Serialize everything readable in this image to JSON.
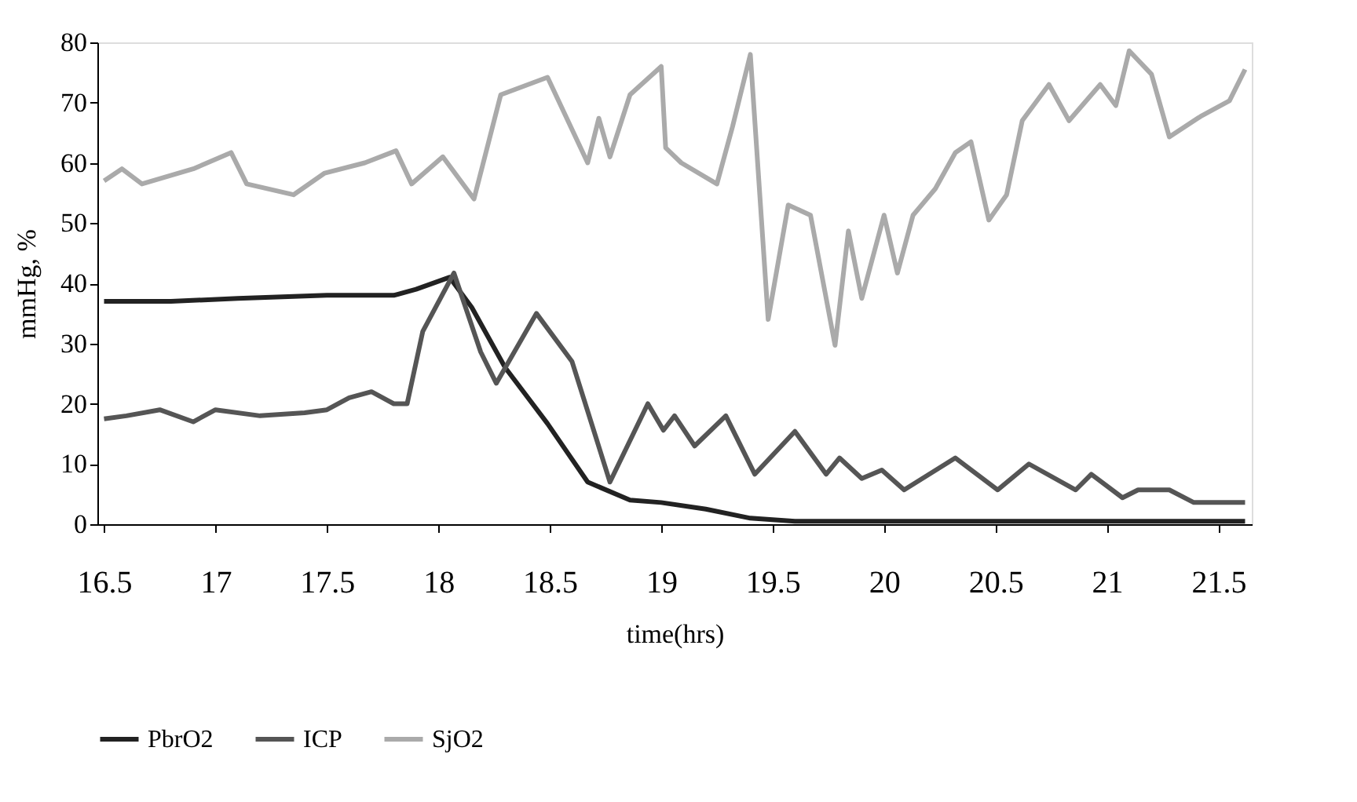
{
  "chart_data": {
    "type": "line",
    "xlabel": "time(hrs)",
    "ylabel": "mmHg, %",
    "xlim": [
      16.47,
      21.65
    ],
    "xticks": [
      16.5,
      17,
      17.5,
      18,
      18.5,
      19,
      19.5,
      20,
      20.5,
      21,
      21.5
    ],
    "ylim": [
      0,
      80
    ],
    "yticks": [
      0,
      10,
      20,
      30,
      40,
      50,
      60,
      70,
      80
    ],
    "grid": false,
    "legend": "bottom",
    "marker": "none",
    "line_style": "solid",
    "series": [
      {
        "name": "PbrO2",
        "color": "#222222",
        "x": [
          16.5,
          16.8,
          17.1,
          17.5,
          17.8,
          17.9,
          18.05,
          18.15,
          18.3,
          18.49,
          18.67,
          18.86,
          19.0,
          19.2,
          19.4,
          19.6,
          20.0,
          20.5,
          21.0,
          21.5,
          21.62
        ],
        "values": [
          37,
          37,
          37.5,
          38,
          38,
          39,
          41,
          36,
          26,
          16.7,
          7,
          4,
          3.6,
          2.5,
          1,
          0.5,
          0.5,
          0.5,
          0.5,
          0.5,
          0.5
        ]
      },
      {
        "name": "ICP",
        "color": "#555555",
        "x": [
          16.5,
          16.6,
          16.75,
          16.9,
          17.0,
          17.2,
          17.4,
          17.5,
          17.6,
          17.7,
          17.8,
          17.86,
          17.93,
          18.07,
          18.19,
          18.26,
          18.44,
          18.6,
          18.77,
          18.94,
          19.01,
          19.06,
          19.15,
          19.29,
          19.42,
          19.6,
          19.74,
          19.8,
          19.9,
          19.99,
          20.09,
          20.32,
          20.51,
          20.65,
          20.86,
          20.93,
          21.07,
          21.14,
          21.28,
          21.39,
          21.62
        ],
        "values": [
          17.5,
          18,
          19,
          17,
          19,
          18,
          18.5,
          19,
          21,
          22,
          20,
          20,
          32,
          41.7,
          28.6,
          23.4,
          35,
          27,
          7,
          20,
          15.6,
          18,
          13,
          18,
          8.3,
          15.4,
          8.3,
          11,
          7.6,
          9,
          5.7,
          11,
          5.7,
          10,
          5.7,
          8.3,
          4.4,
          5.7,
          5.7,
          3.6,
          3.6
        ]
      },
      {
        "name": "SjO2",
        "color": "#aaaaaa",
        "x": [
          16.5,
          16.58,
          16.67,
          16.9,
          17.07,
          17.14,
          17.35,
          17.49,
          17.67,
          17.81,
          17.88,
          18.02,
          18.16,
          18.28,
          18.49,
          18.67,
          18.72,
          18.77,
          18.86,
          19.0,
          19.02,
          19.09,
          19.25,
          19.32,
          19.4,
          19.48,
          19.57,
          19.67,
          19.78,
          19.84,
          19.9,
          20.0,
          20.06,
          20.13,
          20.23,
          20.32,
          20.39,
          20.47,
          20.55,
          20.62,
          20.74,
          20.83,
          20.97,
          21.04,
          21.1,
          21.2,
          21.28,
          21.42,
          21.55,
          21.62
        ],
        "values": [
          57,
          59,
          56.5,
          59,
          61.7,
          56.5,
          54.7,
          58.3,
          60,
          62,
          56.5,
          61,
          54,
          71.3,
          74.2,
          60,
          67.4,
          61,
          71.3,
          76,
          62.5,
          60,
          56.5,
          66,
          78,
          34,
          53,
          51.3,
          29.7,
          48.7,
          37.5,
          51.3,
          41.7,
          51.3,
          55.7,
          61.7,
          63.5,
          50.5,
          54.7,
          67,
          73,
          67,
          73,
          69.5,
          78.6,
          74.7,
          64.3,
          67.7,
          70.3,
          75.5
        ]
      }
    ]
  }
}
